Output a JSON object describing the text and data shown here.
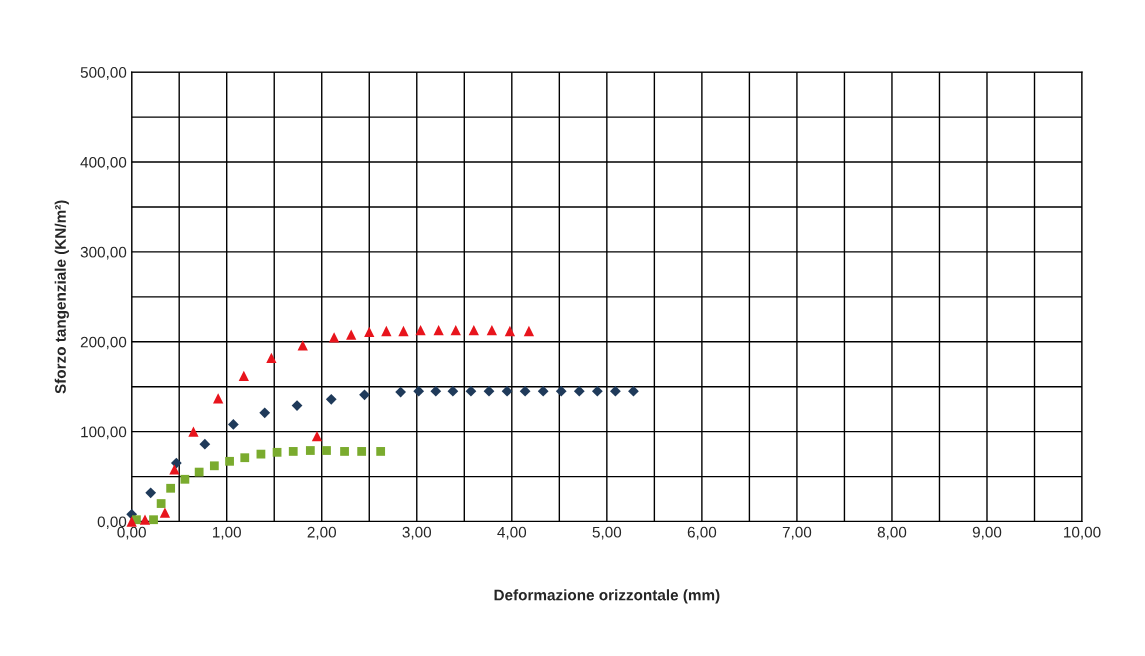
{
  "chart_data": {
    "type": "scatter",
    "xlabel": "Deformazione orizzontale (mm)",
    "ylabel": "Sforzo tangenziale (KN/m²)",
    "xlim": [
      0,
      10
    ],
    "ylim": [
      0,
      500
    ],
    "xticks": [
      {
        "value": 0,
        "label": "0,00"
      },
      {
        "value": 0.5,
        "label": null
      },
      {
        "value": 1,
        "label": "1,00"
      },
      {
        "value": 1.5,
        "label": null
      },
      {
        "value": 2,
        "label": "2,00"
      },
      {
        "value": 2.5,
        "label": null
      },
      {
        "value": 3,
        "label": "3,00"
      },
      {
        "value": 3.5,
        "label": null
      },
      {
        "value": 4,
        "label": "4,00"
      },
      {
        "value": 4.5,
        "label": null
      },
      {
        "value": 5,
        "label": "5,00"
      },
      {
        "value": 5.5,
        "label": null
      },
      {
        "value": 6,
        "label": "6,00"
      },
      {
        "value": 6.5,
        "label": null
      },
      {
        "value": 7,
        "label": "7,00"
      },
      {
        "value": 7.5,
        "label": null
      },
      {
        "value": 8,
        "label": "8,00"
      },
      {
        "value": 8.5,
        "label": null
      },
      {
        "value": 9,
        "label": "9,00"
      },
      {
        "value": 9.5,
        "label": null
      },
      {
        "value": 10,
        "label": "10,00"
      }
    ],
    "yticks": [
      {
        "value": 0,
        "label": "0,00"
      },
      {
        "value": 50,
        "label": null
      },
      {
        "value": 100,
        "label": "100,00"
      },
      {
        "value": 150,
        "label": null
      },
      {
        "value": 200,
        "label": "200,00"
      },
      {
        "value": 250,
        "label": null
      },
      {
        "value": 300,
        "label": "300,00"
      },
      {
        "value": 350,
        "label": null
      },
      {
        "value": 400,
        "label": "400,00"
      },
      {
        "value": 450,
        "label": null
      },
      {
        "value": 500,
        "label": "500,00"
      }
    ],
    "grid": true,
    "series": [
      {
        "color": "#1f3a5a",
        "marker": "diamond",
        "x": [
          0.0,
          0.2,
          0.47,
          0.77,
          1.07,
          1.4,
          1.74,
          2.1,
          2.45,
          2.83,
          3.02,
          3.2,
          3.38,
          3.57,
          3.76,
          3.95,
          4.14,
          4.33,
          4.52,
          4.71,
          4.9,
          5.09,
          5.28
        ],
        "values": [
          8,
          32,
          65,
          86,
          108,
          121,
          129,
          136,
          141,
          144,
          145,
          145,
          145,
          145,
          145,
          145,
          145,
          145,
          145,
          145,
          145,
          145,
          145
        ]
      },
      {
        "color": "#e8141c",
        "marker": "triangle",
        "x": [
          0.0,
          0.14,
          0.35,
          0.45,
          0.65,
          0.91,
          1.18,
          1.47,
          1.8,
          1.95,
          2.13,
          2.31,
          2.5,
          2.68,
          2.86,
          3.04,
          3.23,
          3.41,
          3.6,
          3.79,
          3.98,
          4.18
        ],
        "values": [
          0,
          2,
          10,
          58,
          100,
          137,
          162,
          182,
          196,
          95,
          205,
          208,
          211,
          212,
          212,
          213,
          213,
          213,
          213,
          213,
          212,
          212
        ]
      },
      {
        "color": "#7aab2e",
        "marker": "square",
        "x": [
          0.05,
          0.23,
          0.31,
          0.41,
          0.56,
          0.71,
          0.87,
          1.03,
          1.19,
          1.36,
          1.53,
          1.7,
          1.88,
          2.05,
          2.24,
          2.42,
          2.62
        ],
        "values": [
          2,
          2,
          20,
          37,
          47,
          55,
          62,
          67,
          71,
          75,
          77,
          78,
          79,
          79,
          78,
          78,
          78
        ]
      }
    ]
  }
}
